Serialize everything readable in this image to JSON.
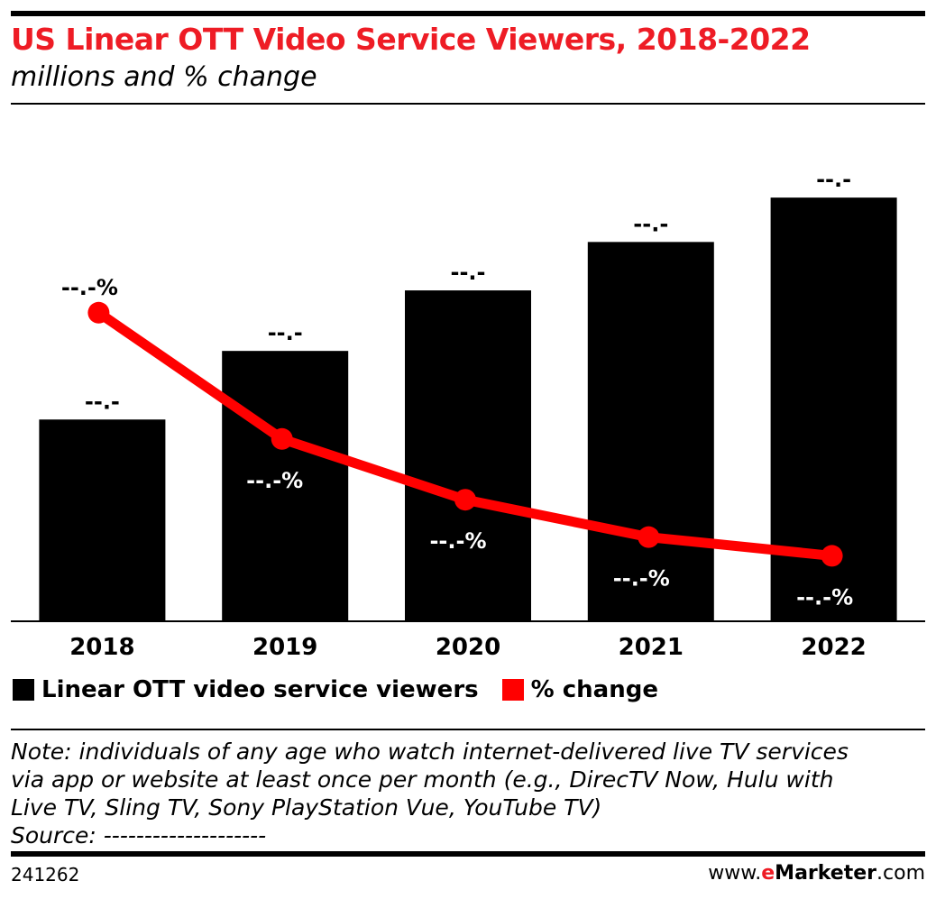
{
  "header": {
    "title": "US Linear OTT Video Service Viewers, 2018-2022",
    "subtitle": "millions and % change"
  },
  "chart_data": {
    "type": "bar",
    "categories": [
      "2018",
      "2019",
      "2020",
      "2021",
      "2022"
    ],
    "series": [
      {
        "name": "Linear OTT video service viewers",
        "kind": "bar",
        "color": "#000000",
        "values": [
          25.0,
          33.5,
          41.0,
          47.0,
          52.5
        ],
        "labels": [
          "--.-",
          "--.-",
          "--.-",
          "--.-",
          "--.-"
        ]
      },
      {
        "name": "% change",
        "kind": "line",
        "color": "#ff0000",
        "values": [
          33.0,
          19.5,
          13.0,
          9.0,
          7.0
        ],
        "labels": [
          "--.-%",
          "--.-%",
          "--.-%",
          "--.-%",
          "--.-%"
        ]
      }
    ],
    "legend_position": "bottom-left",
    "grid": false
  },
  "legend": [
    {
      "label": "Linear OTT video service viewers",
      "color": "#000000"
    },
    {
      "label": "% change",
      "color": "#ff0000"
    }
  ],
  "note": {
    "lines": [
      "Note: individuals of any age who watch internet-delivered live TV services",
      "via app or website at least once per month (e.g., DirecTV Now, Hulu with",
      "Live TV, Sling TV, Sony PlayStation Vue, YouTube TV)",
      "Source: --------------------"
    ]
  },
  "footer": {
    "chart_id": "241262",
    "brand_prefix": "www.",
    "brand_e": "e",
    "brand_marketer": "Marketer",
    "brand_suffix": ".com"
  },
  "colors": {
    "accent": "#ee1c25",
    "line": "#ff0000",
    "bar": "#000000"
  }
}
